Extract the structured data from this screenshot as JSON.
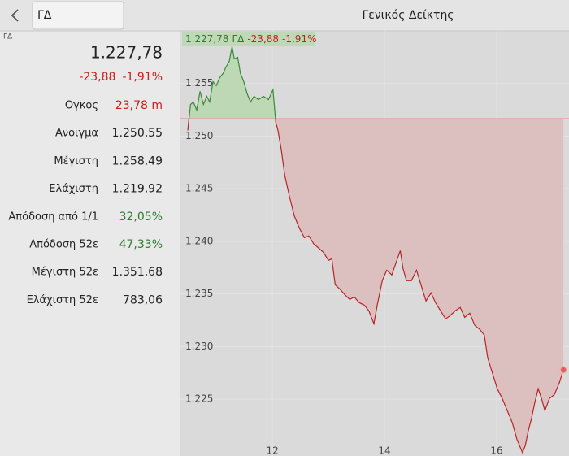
{
  "header": {
    "search": "ΓΔ",
    "title": "Γενικός Δείκτης"
  },
  "symbol_tag": "ΓΔ",
  "quote": {
    "price": "1.227,78",
    "change": "-23,88",
    "change_pct": "-1,91%",
    "rows": [
      {
        "label": "Ογκος",
        "value": "23,78 m",
        "color": "#c8201c"
      },
      {
        "label": "Ανοιγμα",
        "value": "1.250,55",
        "color": "#222222"
      },
      {
        "label": "Μέγιστη",
        "value": "1.258,49",
        "color": "#222222"
      },
      {
        "label": "Ελάχιστη",
        "value": "1.219,92",
        "color": "#222222"
      },
      {
        "label": "Απόδοση από 1/1",
        "value": "32,05%",
        "color": "#2e7d2e"
      },
      {
        "label": "Απόδοση 52ε",
        "value": "47,33%",
        "color": "#2e7d2e"
      },
      {
        "label": "Μέγιστη 52ε",
        "value": "1.351,68",
        "color": "#222222"
      },
      {
        "label": "Ελάχιστη 52ε",
        "value": "783,06",
        "color": "#222222"
      }
    ]
  },
  "chart_data": {
    "type": "line",
    "legend": {
      "price": "1.227,78",
      "symbol": "ΓΔ",
      "change": "-23,88",
      "change_pct": "-1,91%"
    },
    "reference": 1251.66,
    "up_color": "#3a8a3a",
    "down_color": "#b82525",
    "xlim": [
      10.36,
      17.29
    ],
    "xticks": [
      12,
      14,
      16
    ],
    "ylim": [
      1219.6,
      1260
    ],
    "yticks": [
      {
        "value": 1225,
        "label": "1.225"
      },
      {
        "value": 1230,
        "label": "1.230"
      },
      {
        "value": 1235,
        "label": "1.235"
      },
      {
        "value": 1240,
        "label": "1.240"
      },
      {
        "value": 1245,
        "label": "1.245"
      },
      {
        "value": 1250,
        "label": "1.250"
      },
      {
        "value": 1255,
        "label": "1.255"
      }
    ],
    "grid": true,
    "x": [
      10.49,
      10.54,
      10.59,
      10.65,
      10.71,
      10.77,
      10.83,
      10.88,
      10.94,
      11.0,
      11.06,
      11.12,
      11.17,
      11.23,
      11.28,
      11.32,
      11.38,
      11.43,
      11.49,
      11.55,
      11.61,
      11.67,
      11.75,
      11.84,
      11.93,
      12.01,
      12.06,
      12.1,
      12.16,
      12.22,
      12.3,
      12.39,
      12.48,
      12.57,
      12.65,
      12.74,
      12.83,
      12.91,
      13.0,
      13.06,
      13.12,
      13.2,
      13.29,
      13.38,
      13.46,
      13.55,
      13.64,
      13.72,
      13.81,
      13.87,
      13.96,
      14.04,
      14.13,
      14.22,
      14.28,
      14.33,
      14.39,
      14.48,
      14.57,
      14.65,
      14.74,
      14.83,
      14.91,
      15.0,
      15.09,
      15.17,
      15.26,
      15.35,
      15.43,
      15.52,
      15.61,
      15.7,
      15.78,
      15.84,
      15.93,
      16.01,
      16.1,
      16.19,
      16.28,
      16.36,
      16.46,
      16.51,
      16.57,
      16.62,
      16.68,
      16.74,
      16.8,
      16.86,
      16.94,
      17.03,
      17.12,
      17.19
    ],
    "values": [
      1250.54,
      1253.01,
      1253.24,
      1252.47,
      1254.25,
      1253.01,
      1253.78,
      1253.24,
      1255.17,
      1254.79,
      1255.56,
      1255.95,
      1256.56,
      1257.1,
      1258.49,
      1257.34,
      1257.49,
      1255.95,
      1255.17,
      1254.02,
      1253.24,
      1253.78,
      1253.47,
      1253.78,
      1253.47,
      1254.4,
      1251.31,
      1250.54,
      1248.61,
      1246.29,
      1244.36,
      1242.43,
      1241.27,
      1240.35,
      1240.5,
      1239.73,
      1239.34,
      1238.96,
      1238.19,
      1238.34,
      1235.87,
      1235.48,
      1234.94,
      1234.48,
      1234.71,
      1234.17,
      1233.94,
      1233.4,
      1232.17,
      1233.94,
      1236.26,
      1237.26,
      1236.8,
      1238.19,
      1239.11,
      1237.42,
      1236.26,
      1236.26,
      1237.26,
      1235.87,
      1234.33,
      1235.1,
      1234.17,
      1233.4,
      1232.63,
      1232.94,
      1233.4,
      1233.71,
      1232.78,
      1233.17,
      1232.01,
      1231.63,
      1231.09,
      1228.92,
      1227.38,
      1225.99,
      1225.06,
      1223.9,
      1222.75,
      1221.2,
      1219.92,
      1220.58,
      1222.12,
      1223.13,
      1224.67,
      1225.99,
      1225.06,
      1223.9,
      1225.06,
      1225.44,
      1226.6,
      1227.78
    ]
  }
}
